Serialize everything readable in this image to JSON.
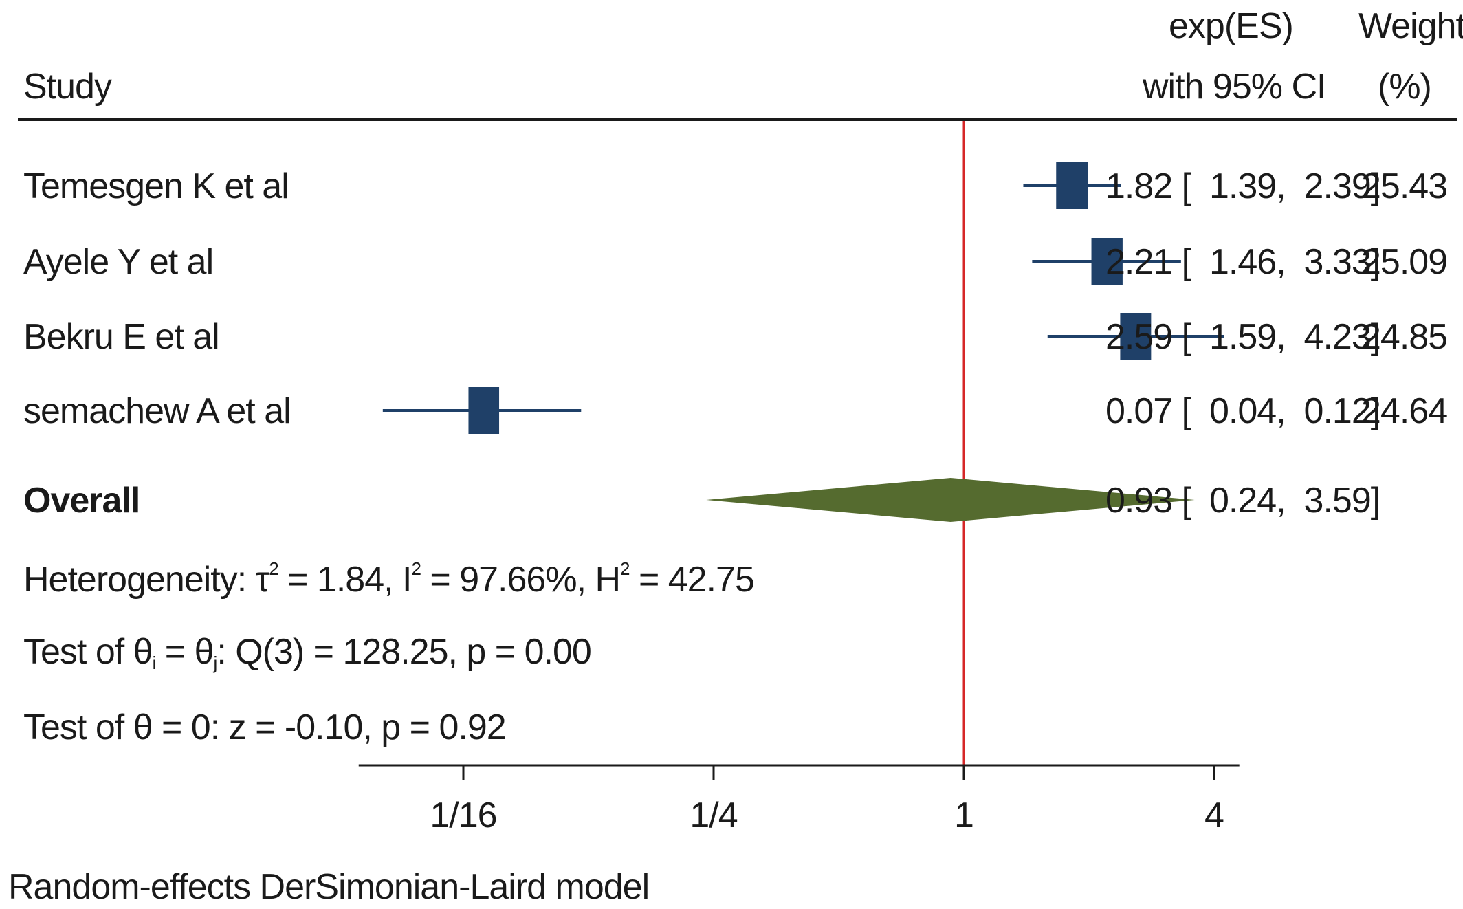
{
  "header": {
    "study": "Study",
    "es_line1": "exp(ES)",
    "es_line2": "with 95% CI",
    "weight_line1": "Weight",
    "weight_line2": "(%)"
  },
  "chart_data": {
    "type": "forest",
    "scale": "log2",
    "xticks": [
      {
        "value": 0.0625,
        "label": "1/16"
      },
      {
        "value": 0.25,
        "label": "1/4"
      },
      {
        "value": 1,
        "label": "1"
      },
      {
        "value": 4,
        "label": "4"
      }
    ],
    "xlim": [
      0.035,
      4.6
    ],
    "reference_line": 1,
    "studies": [
      {
        "name": "Temesgen K et al",
        "es": 1.82,
        "lo": 1.39,
        "hi": 2.39,
        "weight": 25.43,
        "es_text": "1.82 [  1.39,  2.39]",
        "weight_text": "25.43"
      },
      {
        "name": "Ayele Y et al",
        "es": 2.21,
        "lo": 1.46,
        "hi": 3.33,
        "weight": 25.09,
        "es_text": "2.21 [  1.46,  3.33]",
        "weight_text": "25.09"
      },
      {
        "name": "Bekru E et al",
        "es": 2.59,
        "lo": 1.59,
        "hi": 4.23,
        "weight": 24.85,
        "es_text": "2.59 [  1.59,  4.23]",
        "weight_text": "24.85"
      },
      {
        "name": "semachew A et al",
        "es": 0.07,
        "lo": 0.04,
        "hi": 0.12,
        "weight": 24.64,
        "es_text": "0.07 [  0.04,  0.12]",
        "weight_text": "24.64"
      }
    ],
    "overall": {
      "name": "Overall",
      "es": 0.93,
      "lo": 0.24,
      "hi": 3.59,
      "es_text": "0.93 [  0.24,  3.59]"
    },
    "colors": {
      "box": "#1f4068",
      "diamond": "#556b2f",
      "reference": "#d62728",
      "axis": "#1a1a1a"
    }
  },
  "stats": {
    "heterogeneity": {
      "prefix": "Heterogeneity: τ",
      "mid1": " = 1.84, I",
      "mid2": " = 97.66%, H",
      "suffix": " = 42.75",
      "sup": "2"
    },
    "test1": {
      "prefix": "Test of θ",
      "sub_i": "i",
      "mid": " = θ",
      "sub_j": "j",
      "suffix": ": Q(3) = 128.25, p = 0.00"
    },
    "test2": "Test of θ = 0: z = -0.10, p = 0.92"
  },
  "footnote": "Random-effects DerSimonian-Laird model"
}
